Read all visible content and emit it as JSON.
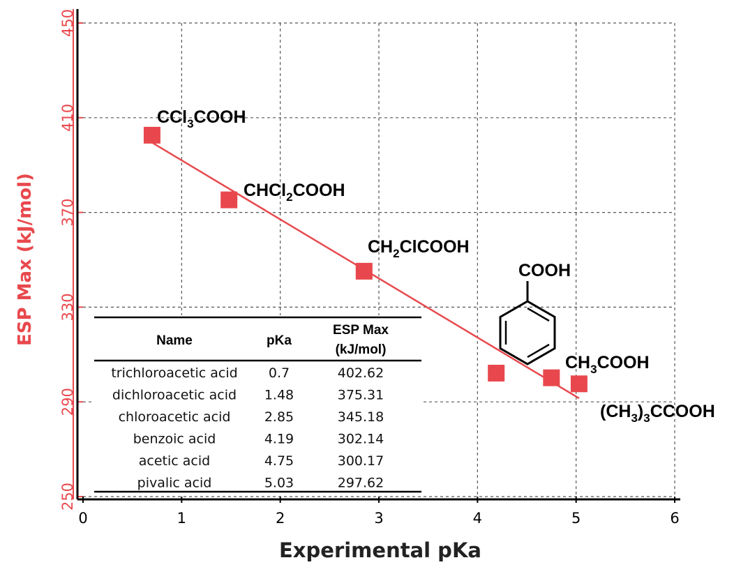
{
  "chart_data": {
    "type": "scatter",
    "title": "",
    "xlabel": "Experimental pKa",
    "ylabel": "ESP Max (kJ/mol)",
    "xlim": [
      0,
      6
    ],
    "ylim": [
      250,
      450
    ],
    "x_ticks": [
      0,
      1,
      2,
      3,
      4,
      5,
      6
    ],
    "y_ticks": [
      250,
      290,
      330,
      370,
      410,
      450
    ],
    "grid": true,
    "marker_color": "#e8484d",
    "axis_color_y": "#e8484d",
    "points": [
      {
        "name": "trichloroacetic acid",
        "label_main": "CCl",
        "label_sub": "3",
        "label_rest": "COOH",
        "x": 0.7,
        "y": 402.62
      },
      {
        "name": "dichloroacetic acid",
        "label_main": "CHCl",
        "label_sub": "2",
        "label_rest": "COOH",
        "x": 1.48,
        "y": 375.31
      },
      {
        "name": "chloroacetic acid",
        "label_main": "CH",
        "label_sub": "2",
        "label_rest": "ClCOOH",
        "x": 2.85,
        "y": 345.18
      },
      {
        "name": "benzoic acid",
        "label_main": "COOH",
        "label_sub": "",
        "label_rest": "",
        "x": 4.19,
        "y": 302.14
      },
      {
        "name": "acetic acid",
        "label_main": "CH",
        "label_sub": "3",
        "label_rest": "COOH",
        "x": 4.75,
        "y": 300.17
      },
      {
        "name": "pivalic acid",
        "label_main": "(CH",
        "label_sub": "3",
        "label_rest": ")",
        "label_sub2": "3",
        "label_rest2": "CCOOH",
        "x": 5.03,
        "y": 297.62
      }
    ],
    "fit_line": {
      "x": [
        0.7,
        5.03
      ],
      "y": [
        399.5,
        291.5
      ],
      "color": "#e8484d"
    },
    "table": {
      "headers": {
        "name": "Name",
        "pka": "pKa",
        "esp_line1": "ESP Max",
        "esp_line2": "(kJ/mol)"
      },
      "rows": [
        {
          "name": "trichloroacetic acid",
          "pka": "0.7",
          "esp": "402.62"
        },
        {
          "name": "dichloroacetic acid",
          "pka": "1.48",
          "esp": "375.31"
        },
        {
          "name": "chloroacetic acid",
          "pka": "2.85",
          "esp": "345.18"
        },
        {
          "name": "benzoic acid",
          "pka": "4.19",
          "esp": "302.14"
        },
        {
          "name": "acetic acid",
          "pka": "4.75",
          "esp": "300.17"
        },
        {
          "name": "pivalic acid",
          "pka": "5.03",
          "esp": "297.62"
        }
      ]
    }
  }
}
